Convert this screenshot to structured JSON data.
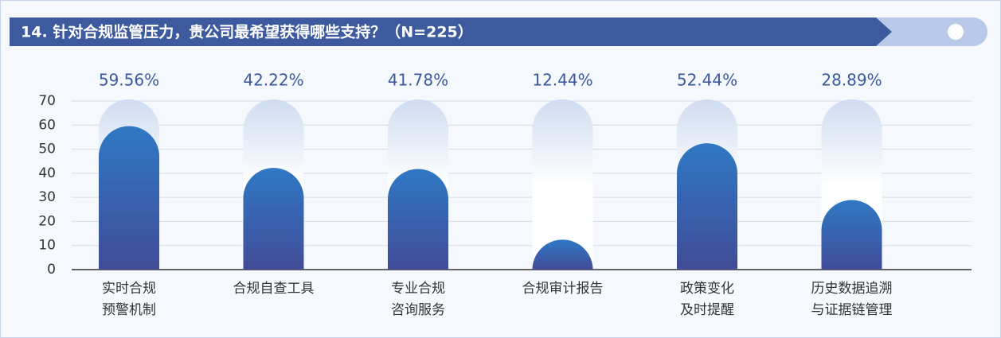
{
  "chart_data": {
    "type": "bar",
    "title": "14. 针对合规监管压力，贵公司最希望获得哪些支持？（N=225）",
    "categories": [
      "实时合规\n预警机制",
      "合规自查工具",
      "专业合规\n咨询服务",
      "合规审计报告",
      "政策变化\n及时提醒",
      "历史数据追溯\n与证据链管理"
    ],
    "values": [
      59.56,
      42.22,
      41.78,
      12.44,
      52.44,
      28.89
    ],
    "value_labels": [
      "59.56%",
      "42.22%",
      "41.78%",
      "12.44%",
      "52.44%",
      "28.89%"
    ],
    "ylim": [
      0,
      70
    ],
    "yticks": [
      0,
      10,
      20,
      30,
      40,
      50,
      60,
      70
    ],
    "grid": true,
    "color": "#2f78c4"
  }
}
